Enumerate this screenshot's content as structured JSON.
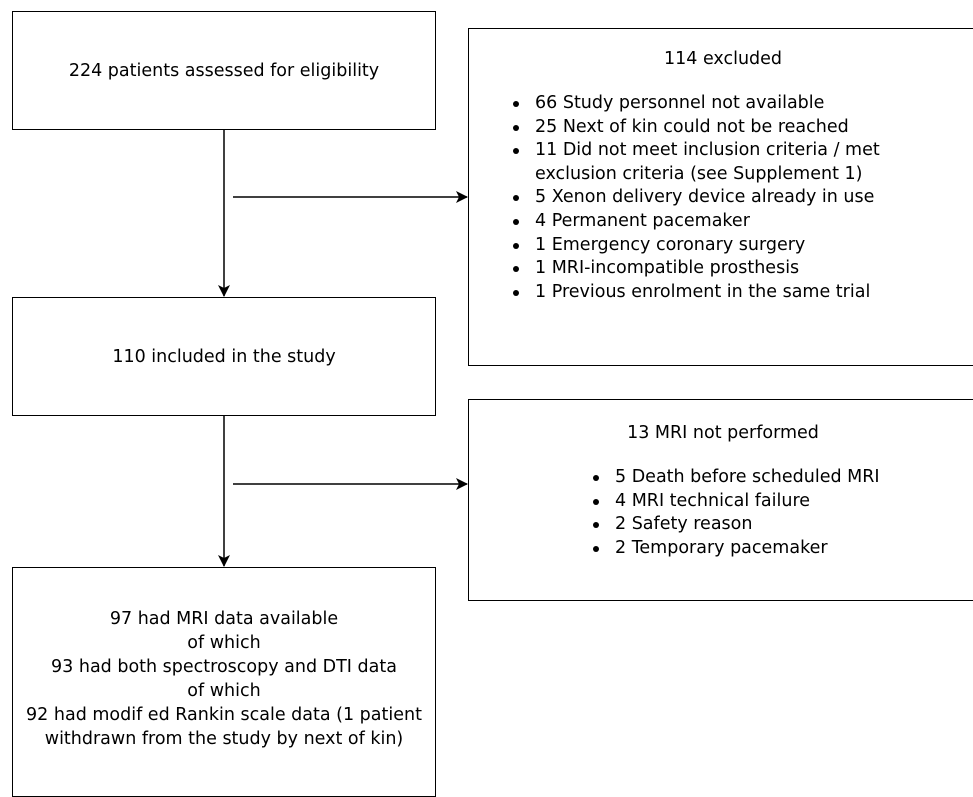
{
  "assessed": "224 patients assessed for eligibility",
  "excluded": {
    "title": "114 excluded",
    "reasons": [
      "66 Study personnel not available",
      "25 Next of kin could not be reached",
      "11 Did not meet inclusion criteria / met exclusion criteria (see Supplement 1)",
      "5 Xenon delivery device already in use",
      "4 Permanent pacemaker",
      "1 Emergency coronary surgery",
      "1 MRI-incompatible prosthesis",
      "1 Previous enrolment in the same trial"
    ]
  },
  "included": "110 included in the study",
  "mri_not_performed": {
    "title": "13 MRI not performed",
    "reasons": [
      "5 Death before scheduled MRI",
      "4 MRI technical failure",
      "2 Safety reason",
      "2 Temporary pacemaker"
    ]
  },
  "final": {
    "lines": [
      "97 had MRI data available",
      "of which",
      "93 had both spectroscopy and DTI data",
      "of which",
      "92 had modif ed Rankin scale data (1 patient",
      "withdrawn from the study by next of kin)"
    ]
  }
}
